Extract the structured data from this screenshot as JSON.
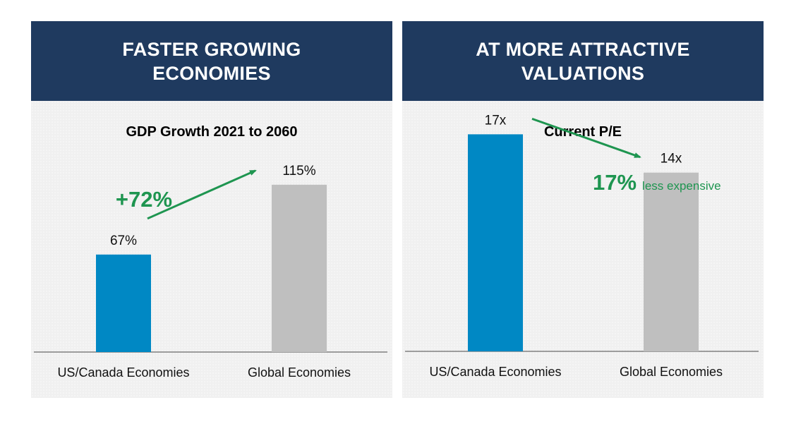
{
  "panels": [
    {
      "header": "FASTER GROWING ECONOMIES",
      "chart_title": "GDP Growth 2021 to 2060",
      "callout_main": "+72%",
      "callout_sub": "",
      "arrow_direction": "up"
    },
    {
      "header": "AT MORE ATTRACTIVE VALUATIONS",
      "chart_title": "Current P/E",
      "callout_main": "17%",
      "callout_sub": "less expensive",
      "arrow_direction": "down"
    }
  ],
  "colors": {
    "header_bg": "#1f3a5f",
    "header_text": "#ffffff",
    "us_canada_bar": "#0088c4",
    "global_bar": "#bfbfbf",
    "callout_green": "#1e9550",
    "panel_bg": "#f0f0f0"
  },
  "chart_data": [
    {
      "type": "bar",
      "title": "GDP Growth 2021 to 2060",
      "categories": [
        "US/Canada Economies",
        "Global Economies"
      ],
      "values": [
        67,
        115
      ],
      "value_labels": [
        "67%",
        "115%"
      ],
      "unit": "%",
      "xlabel": "",
      "ylabel": "",
      "ylim": [
        0,
        160
      ],
      "grid": false,
      "annotation": "+72%"
    },
    {
      "type": "bar",
      "title": "Current P/E",
      "categories": [
        "US/Canada Economies",
        "Global Economies"
      ],
      "values": [
        17,
        14
      ],
      "value_labels": [
        "17x",
        "14x"
      ],
      "unit": "x",
      "xlabel": "",
      "ylabel": "",
      "ylim": [
        0,
        21
      ],
      "grid": false,
      "annotation": "17% less expensive"
    }
  ]
}
